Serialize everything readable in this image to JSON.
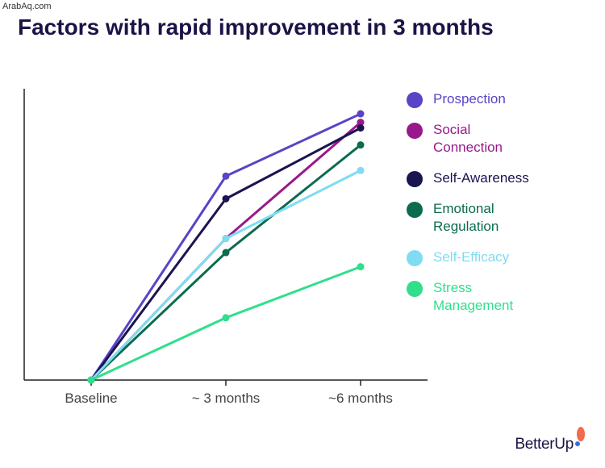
{
  "watermark": "ArabAq.com",
  "title": "Factors with rapid improvement in 3 months",
  "logo_text": "BetterUp",
  "chart_data": {
    "type": "line",
    "title": "Factors with rapid improvement in 3 months",
    "xlabel": "",
    "ylabel": "",
    "categories": [
      "Baseline",
      "~ 3 months",
      "~6 months"
    ],
    "ylim": [
      0,
      1
    ],
    "grid": false,
    "legend_position": "right",
    "series": [
      {
        "name": "Prospection",
        "color": "#5a43c7",
        "values": [
          0,
          0.72,
          0.94
        ]
      },
      {
        "name": "Social Connection",
        "color": "#98198a",
        "values": [
          0,
          0.5,
          0.91
        ]
      },
      {
        "name": "Self-Awareness",
        "color": "#1a1450",
        "values": [
          0,
          0.64,
          0.89
        ]
      },
      {
        "name": "Emotional Regulation",
        "color": "#0b6b4f",
        "values": [
          0,
          0.45,
          0.83
        ]
      },
      {
        "name": "Self-Efficacy",
        "color": "#7fdcf2",
        "values": [
          0,
          0.5,
          0.74
        ]
      },
      {
        "name": "Stress Management",
        "color": "#2fdf8c",
        "values": [
          0,
          0.22,
          0.4
        ]
      }
    ]
  }
}
